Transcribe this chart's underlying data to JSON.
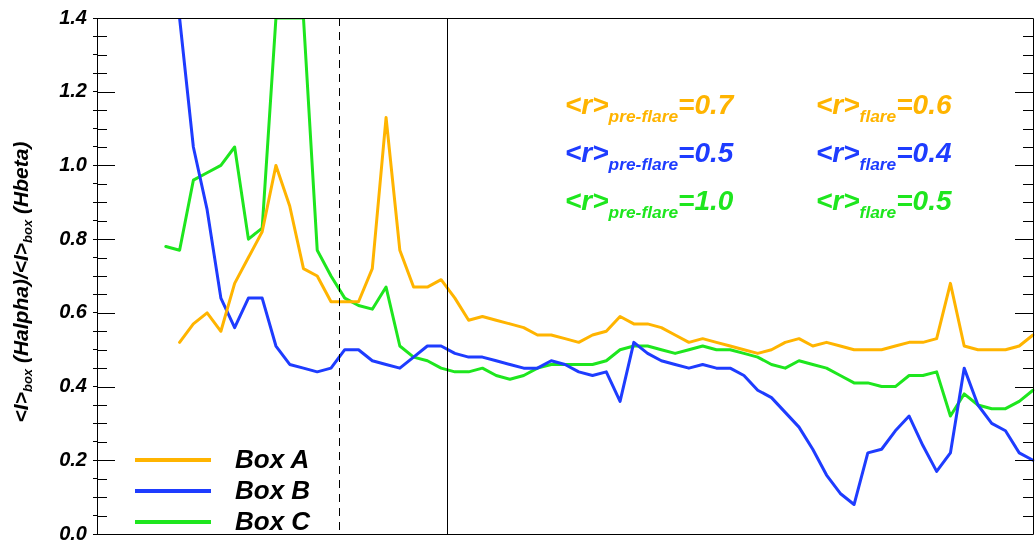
{
  "chart_data": {
    "type": "line",
    "ylabel": "<I>$_{box}$ (Halpha)/<I>$_{box}$ (Hbeta)",
    "categories": [
      null,
      null,
      null,
      null,
      null,
      null,
      null,
      null,
      null,
      null,
      null,
      null,
      null,
      null,
      null,
      null,
      null,
      null,
      null,
      null,
      null,
      null,
      null,
      null,
      null,
      null,
      null,
      null,
      null,
      null,
      null,
      null,
      null,
      null,
      null,
      null,
      null,
      null,
      null,
      null,
      null,
      null,
      null,
      null,
      null,
      null,
      null,
      null,
      null,
      null,
      null,
      null,
      null,
      null,
      null,
      null,
      null,
      null,
      null,
      null,
      null,
      null,
      null,
      null,
      null,
      null,
      null,
      null,
      null
    ],
    "ylim": [
      0,
      1.4
    ],
    "yticks": [
      {
        "value": 0,
        "label": "0.0"
      },
      {
        "value": 0.05,
        "label": null
      },
      {
        "value": 0.1,
        "label": null
      },
      {
        "value": 0.15,
        "label": null
      },
      {
        "value": 0.2,
        "label": "0.2"
      },
      {
        "value": 0.25,
        "label": null
      },
      {
        "value": 0.3,
        "label": null
      },
      {
        "value": 0.35,
        "label": null
      },
      {
        "value": 0.4,
        "label": "0.4"
      },
      {
        "value": 0.45,
        "label": null
      },
      {
        "value": 0.5,
        "label": null
      },
      {
        "value": 0.55,
        "label": null
      },
      {
        "value": 0.6,
        "label": "0.6"
      },
      {
        "value": 0.65,
        "label": null
      },
      {
        "value": 0.7,
        "label": null
      },
      {
        "value": 0.75,
        "label": null
      },
      {
        "value": 0.8,
        "label": "0.8"
      },
      {
        "value": 0.85,
        "label": null
      },
      {
        "value": 0.9,
        "label": null
      },
      {
        "value": 0.95,
        "label": null
      },
      {
        "value": 1.0,
        "label": "1.0"
      },
      {
        "value": 1.05,
        "label": null
      },
      {
        "value": 1.1,
        "label": null
      },
      {
        "value": 1.15,
        "label": null
      },
      {
        "value": 1.2,
        "label": "1.2"
      },
      {
        "value": 1.25,
        "label": null
      },
      {
        "value": 1.3,
        "label": null
      },
      {
        "value": 1.35,
        "label": null
      },
      {
        "value": 1.4,
        "label": "1.4"
      }
    ],
    "tick_labels": "y",
    "legend": "bottom left",
    "marker": "none",
    "line_style": "solid",
    "annotations": [
      "<r>$_{pre-flare}$=0.7",
      "<r>$_{flare}$=0.6",
      "<r>$_{pre-flare}$=0.5",
      "<r>$_{flare}$=0.4",
      "<r>$_{pre-flare}$=1.0",
      "<r>$_{flare}$=0.5"
    ],
    "series": [
      {
        "name": "Box A",
        "color": "#ffb400",
        "values": [
          null,
          null,
          null,
          null,
          null,
          null,
          0.52,
          0.57,
          0.6,
          0.55,
          0.68,
          0.75,
          0.82,
          1.0,
          0.89,
          0.72,
          0.7,
          0.63,
          0.63,
          0.63,
          0.72,
          1.13,
          0.77,
          0.67,
          0.67,
          0.69,
          0.64,
          0.58,
          0.59,
          0.58,
          0.57,
          0.56,
          0.54,
          0.54,
          0.53,
          0.52,
          0.54,
          0.55,
          0.59,
          0.57,
          0.57,
          0.56,
          0.54,
          0.52,
          0.53,
          0.52,
          0.51,
          0.5,
          0.49,
          0.5,
          0.52,
          0.53,
          0.51,
          0.52,
          0.51,
          0.5,
          0.5,
          0.5,
          0.51,
          0.52,
          0.52,
          0.53,
          0.68,
          0.51,
          0.5,
          0.5,
          0.5,
          0.51,
          0.54
        ]
      },
      {
        "name": "Box B",
        "color": "#1e3cff",
        "values": [
          null,
          null,
          null,
          null,
          null,
          null,
          1.4,
          1.05,
          0.88,
          0.64,
          0.56,
          0.64,
          0.64,
          0.51,
          0.46,
          0.45,
          0.44,
          0.45,
          0.5,
          0.5,
          0.47,
          0.46,
          0.45,
          0.48,
          0.51,
          0.51,
          0.49,
          0.48,
          0.48,
          0.47,
          0.46,
          0.45,
          0.45,
          0.47,
          0.46,
          0.44,
          0.43,
          0.44,
          0.36,
          0.52,
          0.49,
          0.47,
          0.46,
          0.45,
          0.46,
          0.45,
          0.45,
          0.43,
          0.39,
          0.37,
          0.33,
          0.29,
          0.23,
          0.16,
          0.11,
          0.08,
          0.22,
          0.23,
          0.28,
          0.32,
          0.24,
          0.17,
          0.22,
          0.45,
          0.35,
          0.3,
          0.28,
          0.22,
          0.2
        ]
      },
      {
        "name": "Box C",
        "color": "#1ee61e",
        "values": [
          null,
          null,
          null,
          null,
          null,
          0.78,
          0.77,
          0.96,
          0.98,
          1.0,
          1.05,
          0.8,
          0.83,
          1.4,
          1.4,
          1.4,
          0.77,
          0.7,
          0.64,
          0.62,
          0.61,
          0.67,
          0.51,
          0.48,
          0.47,
          0.45,
          0.44,
          0.44,
          0.45,
          0.43,
          0.42,
          0.43,
          0.45,
          0.46,
          0.46,
          0.46,
          0.46,
          0.47,
          0.5,
          0.51,
          0.51,
          0.5,
          0.49,
          0.5,
          0.51,
          0.5,
          0.5,
          0.49,
          0.48,
          0.46,
          0.45,
          0.47,
          0.46,
          0.45,
          0.43,
          0.41,
          0.41,
          0.4,
          0.4,
          0.43,
          0.43,
          0.44,
          0.32,
          0.38,
          0.35,
          0.34,
          0.34,
          0.36,
          0.39
        ]
      }
    ]
  }
}
